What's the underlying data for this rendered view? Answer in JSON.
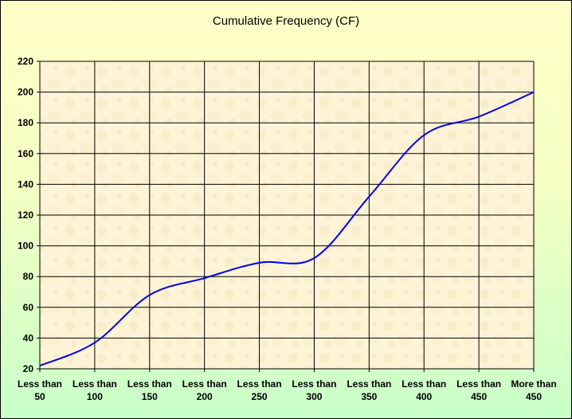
{
  "chart_data": {
    "type": "line",
    "title": "Cumulative Frequency (CF)",
    "xlabel": "",
    "ylabel": "",
    "categories": [
      [
        "Less than",
        "50"
      ],
      [
        "Less than",
        "100"
      ],
      [
        "Less than",
        "150"
      ],
      [
        "Less than",
        "200"
      ],
      [
        "Less than",
        "250"
      ],
      [
        "Less than",
        "300"
      ],
      [
        "Less than",
        "350"
      ],
      [
        "Less than",
        "400"
      ],
      [
        "Less than",
        "450"
      ],
      [
        "More than",
        "450"
      ]
    ],
    "series": [
      {
        "values": [
          22,
          37,
          68,
          79,
          89,
          92,
          132,
          172,
          184,
          200
        ]
      }
    ],
    "ylim": [
      20,
      220
    ],
    "yticks": [
      20,
      40,
      60,
      80,
      100,
      120,
      140,
      160,
      180,
      200,
      220
    ],
    "grid": true,
    "line_color": "#0000ee",
    "plot_background": "#fdf3d6",
    "legend": "none"
  }
}
